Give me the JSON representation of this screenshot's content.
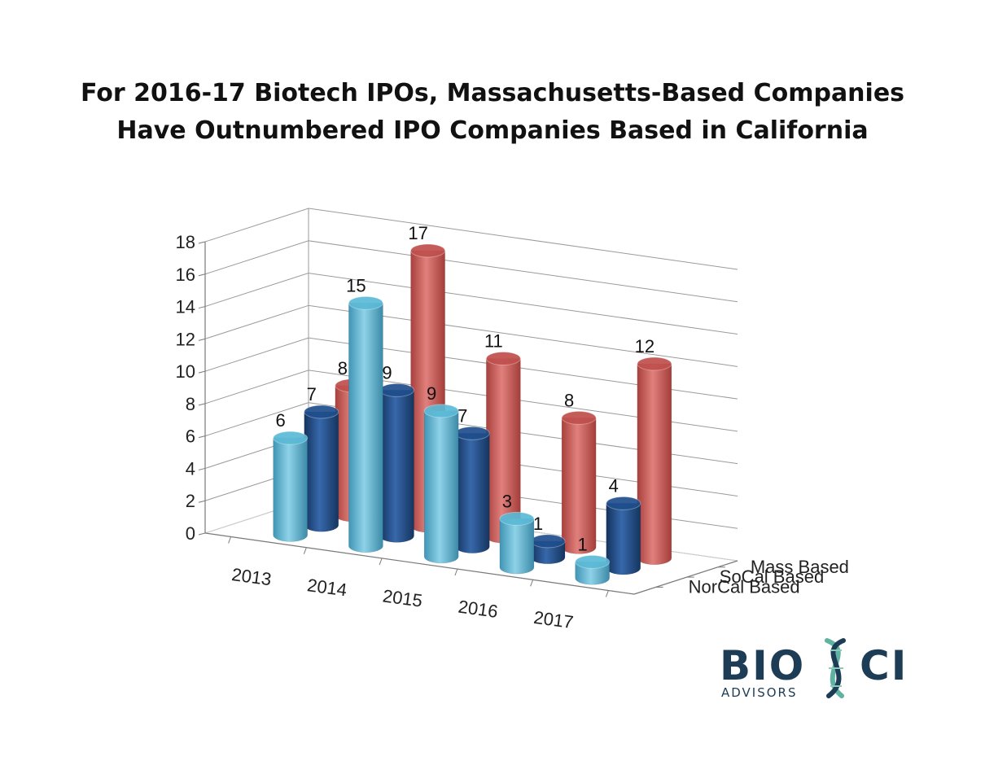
{
  "chart_data": {
    "type": "bar",
    "variant": "3d-cylinder",
    "title": [
      "For 2016-17 Biotech IPOs, Massachusetts-Based Companies",
      "Have Outnumbered IPO Companies Based in California"
    ],
    "categories": [
      "2013",
      "2014",
      "2015",
      "2016",
      "2017"
    ],
    "series": [
      {
        "name": "NorCal Based",
        "values": [
          6,
          15,
          9,
          3,
          1
        ],
        "color": "#5bbad6"
      },
      {
        "name": "SoCal Based",
        "values": [
          7,
          9,
          7,
          1,
          4
        ],
        "color": "#1f4e8c"
      },
      {
        "name": "Mass Based",
        "values": [
          8,
          17,
          11,
          8,
          12
        ],
        "color": "#c0504d"
      }
    ],
    "ylim": [
      0,
      18
    ],
    "yticks": [
      0,
      2,
      4,
      6,
      8,
      10,
      12,
      14,
      16,
      18
    ],
    "grid": true,
    "legend": "depth-axis"
  },
  "logo": {
    "text_left": "BIO",
    "text_right": "CI",
    "subtext": "ADVISORS",
    "color_dark": "#1d3d56",
    "color_accent": "#5fb3a0"
  }
}
